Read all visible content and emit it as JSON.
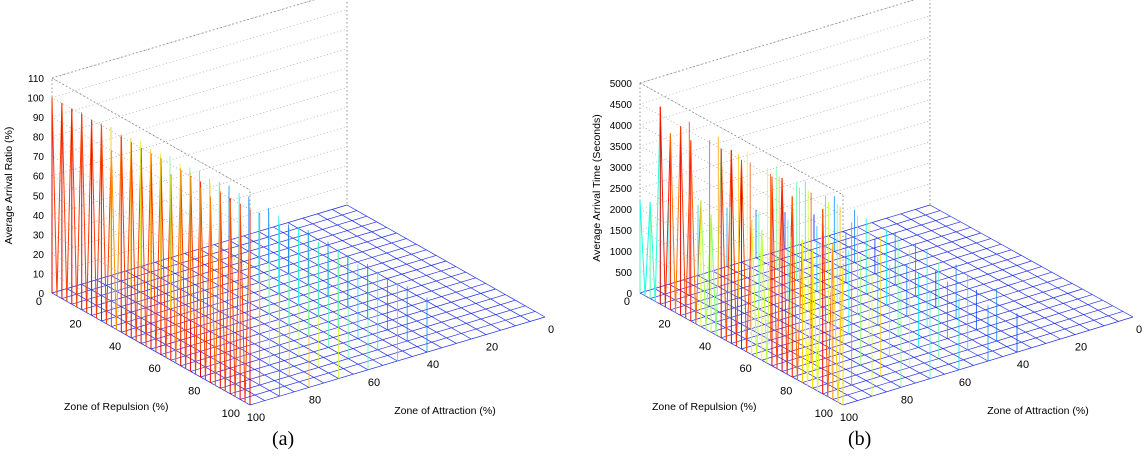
{
  "chart_data": [
    {
      "type": "surface",
      "panel_label": "(a)",
      "title": "",
      "xlabel": "Zone of Attraction (%)",
      "ylabel": "Zone of Repulsion (%)",
      "zlabel": "Average Arrival Ratio (%)",
      "xlim": [
        0,
        100
      ],
      "ylim": [
        0,
        100
      ],
      "zlim": [
        0,
        110
      ],
      "x_ticks": [
        "0",
        "20",
        "40",
        "60",
        "80",
        "100"
      ],
      "y_ticks": [
        "0",
        "20",
        "40",
        "60",
        "80",
        "100"
      ],
      "z_ticks": [
        "0",
        "10",
        "20",
        "30",
        "40",
        "50",
        "60",
        "70",
        "80",
        "90",
        "100",
        "110"
      ],
      "grid": true,
      "colormap": "jet",
      "surface_shape": "Ridges along the Zone of Attraction = 0 edge for repulsion 0-100%; values near 100% at the left, alternating with dips to 0, becoming lower and more irregular toward higher attraction.",
      "sample_profile_repulsion_edge": {
        "x_repulsion": [
          0,
          5,
          10,
          15,
          20,
          25,
          30,
          35,
          40,
          45,
          50,
          55,
          60,
          65,
          70,
          75,
          80,
          85,
          90,
          95,
          100
        ],
        "z_ratio": [
          100,
          100,
          100,
          100,
          100,
          100,
          90,
          100,
          100,
          100,
          100,
          100,
          95,
          100,
          100,
          100,
          95,
          100,
          100,
          100,
          100
        ]
      }
    },
    {
      "type": "surface",
      "panel_label": "(b)",
      "title": "",
      "xlabel": "Zone of Attraction (%)",
      "ylabel": "Zone of Repulsion (%)",
      "zlabel": "Average Arrival Time (Seconds)",
      "xlim": [
        0,
        100
      ],
      "ylim": [
        0,
        100
      ],
      "zlim": [
        0,
        5000
      ],
      "x_ticks": [
        "0",
        "20",
        "40",
        "60",
        "80",
        "100"
      ],
      "y_ticks": [
        "0",
        "20",
        "40",
        "60",
        "80",
        "100"
      ],
      "z_ticks": [
        "0",
        "500",
        "1000",
        "1500",
        "2000",
        "2500",
        "3000",
        "3500",
        "4000",
        "4500",
        "5000"
      ],
      "grid": true,
      "colormap": "jet",
      "surface_shape": "Ridges along the Zone of Attraction = 0 edge; peaks near 4500-4800 s at low repulsion, decreasing toward about 2000-3000 s at higher repulsion, alternating with drops to 0.",
      "sample_profile_repulsion_edge": {
        "x_repulsion": [
          0,
          5,
          10,
          15,
          20,
          25,
          30,
          35,
          40,
          45,
          50,
          55,
          60,
          65,
          70,
          75,
          80,
          85,
          90,
          95,
          100
        ],
        "z_time": [
          2200,
          2300,
          4700,
          4200,
          4500,
          4300,
          3000,
          2800,
          4500,
          4600,
          4500,
          3200,
          3100,
          4500,
          4600,
          4300,
          3400,
          3300,
          4400,
          3700,
          3300
        ]
      }
    }
  ]
}
